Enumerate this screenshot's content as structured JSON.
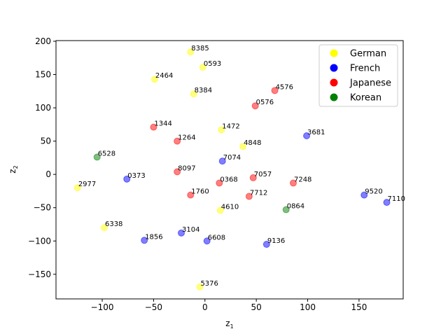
{
  "chart_data": {
    "type": "scatter",
    "xlabel": "z",
    "xlabel_sub": "1",
    "ylabel": "z",
    "ylabel_sub": "2",
    "xlim": [
      -145,
      193
    ],
    "ylim": [
      -187,
      201
    ],
    "xticks": [
      -100,
      -50,
      0,
      50,
      100,
      150
    ],
    "yticks": [
      -150,
      -100,
      -50,
      0,
      50,
      100,
      150,
      200
    ],
    "xtick_labels": [
      "−100",
      "−50",
      "0",
      "50",
      "100",
      "150"
    ],
    "ytick_labels": [
      "−150",
      "−100",
      "−50",
      "0",
      "50",
      "100",
      "150",
      "200"
    ],
    "grid": false,
    "legend_position": "top-right",
    "colors": {
      "German": "#ffff00",
      "French": "#0000ff",
      "Japanese": "#ff0000",
      "Korean": "#008000"
    },
    "series": [
      {
        "name": "German",
        "color": "#ffff00",
        "points": [
          {
            "label": "8385",
            "x": -14,
            "y": 184
          },
          {
            "label": "0593",
            "x": -2,
            "y": 161
          },
          {
            "label": "2464",
            "x": -49,
            "y": 143
          },
          {
            "label": "8384",
            "x": -11,
            "y": 121
          },
          {
            "label": "1472",
            "x": 16,
            "y": 67
          },
          {
            "label": "4848",
            "x": 37,
            "y": 42
          },
          {
            "label": "2977",
            "x": -124,
            "y": -20
          },
          {
            "label": "4610",
            "x": 15,
            "y": -54
          },
          {
            "label": "6338",
            "x": -98,
            "y": -80
          },
          {
            "label": "5376",
            "x": -5,
            "y": -169
          }
        ]
      },
      {
        "name": "French",
        "color": "#0000ff",
        "points": [
          {
            "label": "3681",
            "x": 99,
            "y": 58
          },
          {
            "label": "7074",
            "x": 17,
            "y": 20
          },
          {
            "label": "0373",
            "x": -76,
            "y": -7
          },
          {
            "label": "9520",
            "x": 155,
            "y": -31
          },
          {
            "label": "7110",
            "x": 177,
            "y": -42
          },
          {
            "label": "3104",
            "x": -23,
            "y": -88
          },
          {
            "label": "1856",
            "x": -59,
            "y": -99
          },
          {
            "label": "6608",
            "x": 2,
            "y": -100
          },
          {
            "label": "9136",
            "x": 60,
            "y": -105
          }
        ]
      },
      {
        "name": "Japanese",
        "color": "#ff0000",
        "points": [
          {
            "label": "4576",
            "x": 68,
            "y": 126
          },
          {
            "label": "0576",
            "x": 49,
            "y": 103
          },
          {
            "label": "1344",
            "x": -50,
            "y": 71
          },
          {
            "label": "1264",
            "x": -27,
            "y": 50
          },
          {
            "label": "8097",
            "x": -27,
            "y": 4
          },
          {
            "label": "7057",
            "x": 47,
            "y": -5
          },
          {
            "label": "0368",
            "x": 14,
            "y": -13
          },
          {
            "label": "7248",
            "x": 86,
            "y": -13
          },
          {
            "label": "1760",
            "x": -14,
            "y": -31
          },
          {
            "label": "7712",
            "x": 43,
            "y": -33
          }
        ]
      },
      {
        "name": "Korean",
        "color": "#008000",
        "points": [
          {
            "label": "6528",
            "x": -105,
            "y": 26
          },
          {
            "label": "0864",
            "x": 79,
            "y": -53
          }
        ]
      }
    ]
  }
}
